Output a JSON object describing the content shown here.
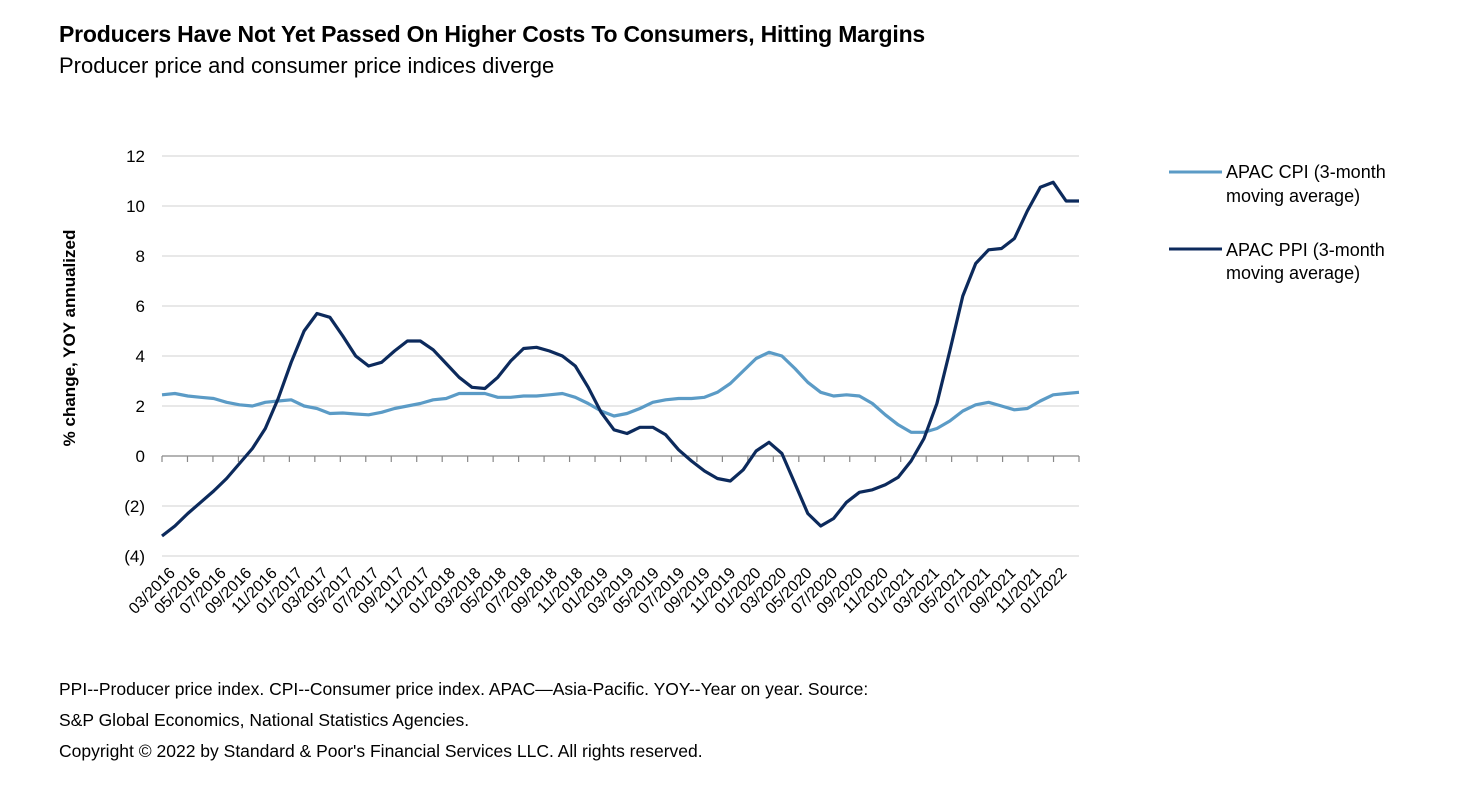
{
  "chart_data": {
    "type": "line",
    "title": "Producers Have Not Yet Passed On Higher Costs To Consumers, Hitting Margins",
    "subtitle": "Producer price and consumer price indices diverge",
    "xlabel": "",
    "ylabel": "% change, YOY annualized",
    "ylim": [
      -4,
      12
    ],
    "yticks": [
      12,
      10,
      8,
      6,
      4,
      2,
      0,
      -2,
      -4
    ],
    "ytick_labels": [
      "12",
      "10",
      "8",
      "6",
      "4",
      "2",
      "0",
      "(2)",
      "(4)"
    ],
    "grid": true,
    "legend_position": "right",
    "xtick_labels": [
      "03/2016",
      "05/2016",
      "07/2016",
      "09/2016",
      "11/2016",
      "01/2017",
      "03/2017",
      "05/2017",
      "07/2017",
      "09/2017",
      "11/2017",
      "01/2018",
      "03/2018",
      "05/2018",
      "07/2018",
      "09/2018",
      "11/2018",
      "01/2019",
      "03/2019",
      "05/2019",
      "07/2019",
      "09/2019",
      "11/2019",
      "01/2020",
      "03/2020",
      "05/2020",
      "07/2020",
      "09/2020",
      "11/2020",
      "01/2021",
      "03/2021",
      "05/2021",
      "07/2021",
      "09/2021",
      "11/2021",
      "01/2022"
    ],
    "x_start": "03/2016",
    "x_frequency": "monthly",
    "series": [
      {
        "name": "APAC CPI (3-month moving average)",
        "color": "#5b9bc6",
        "values": [
          2.45,
          2.5,
          2.4,
          2.35,
          2.3,
          2.15,
          2.05,
          2.0,
          2.15,
          2.2,
          2.25,
          2.0,
          1.9,
          1.7,
          1.72,
          1.68,
          1.65,
          1.75,
          1.9,
          2.0,
          2.1,
          2.25,
          2.3,
          2.5,
          2.5,
          2.5,
          2.35,
          2.35,
          2.4,
          2.4,
          2.45,
          2.5,
          2.35,
          2.1,
          1.8,
          1.6,
          1.7,
          1.9,
          2.15,
          2.25,
          2.3,
          2.3,
          2.35,
          2.55,
          2.9,
          3.4,
          3.9,
          4.15,
          4.0,
          3.5,
          2.95,
          2.55,
          2.4,
          2.45,
          2.4,
          2.1,
          1.65,
          1.25,
          0.95,
          0.95,
          1.1,
          1.4,
          1.8,
          2.05,
          2.15,
          2.0,
          1.85,
          1.9,
          2.2,
          2.45,
          2.5,
          2.55
        ]
      },
      {
        "name": "APAC PPI (3-month moving average)",
        "color": "#0c2a5c",
        "values": [
          -3.2,
          -2.8,
          -2.3,
          -1.85,
          -1.4,
          -0.9,
          -0.3,
          0.3,
          1.1,
          2.3,
          3.75,
          5.0,
          5.7,
          5.55,
          4.8,
          4.0,
          3.6,
          3.75,
          4.2,
          4.6,
          4.6,
          4.25,
          3.7,
          3.15,
          2.75,
          2.7,
          3.15,
          3.8,
          4.3,
          4.35,
          4.2,
          4.0,
          3.6,
          2.75,
          1.75,
          1.05,
          0.9,
          1.15,
          1.15,
          0.85,
          0.25,
          -0.2,
          -0.6,
          -0.9,
          -1.0,
          -0.55,
          0.2,
          0.55,
          0.1,
          -1.1,
          -2.3,
          -2.8,
          -2.5,
          -1.85,
          -1.45,
          -1.35,
          -1.15,
          -0.85,
          -0.2,
          0.7,
          2.1,
          4.2,
          6.4,
          7.7,
          8.25,
          8.3,
          8.7,
          9.8,
          10.75,
          10.95,
          10.2,
          10.2
        ]
      }
    ]
  },
  "legend": {
    "items": [
      {
        "line1": "APAC CPI (3-month",
        "line2": "moving average)"
      },
      {
        "line1": "APAC PPI (3-month",
        "line2": "moving average)"
      }
    ]
  },
  "footer": {
    "line1": "PPI--Producer price index. CPI--Consumer price index. APAC—Asia-Pacific. YOY--Year on year. Source:",
    "line2": "S&P Global Economics, National Statistics Agencies.",
    "line3": "Copyright © 2022 by Standard & Poor's Financial Services LLC. All rights reserved."
  }
}
